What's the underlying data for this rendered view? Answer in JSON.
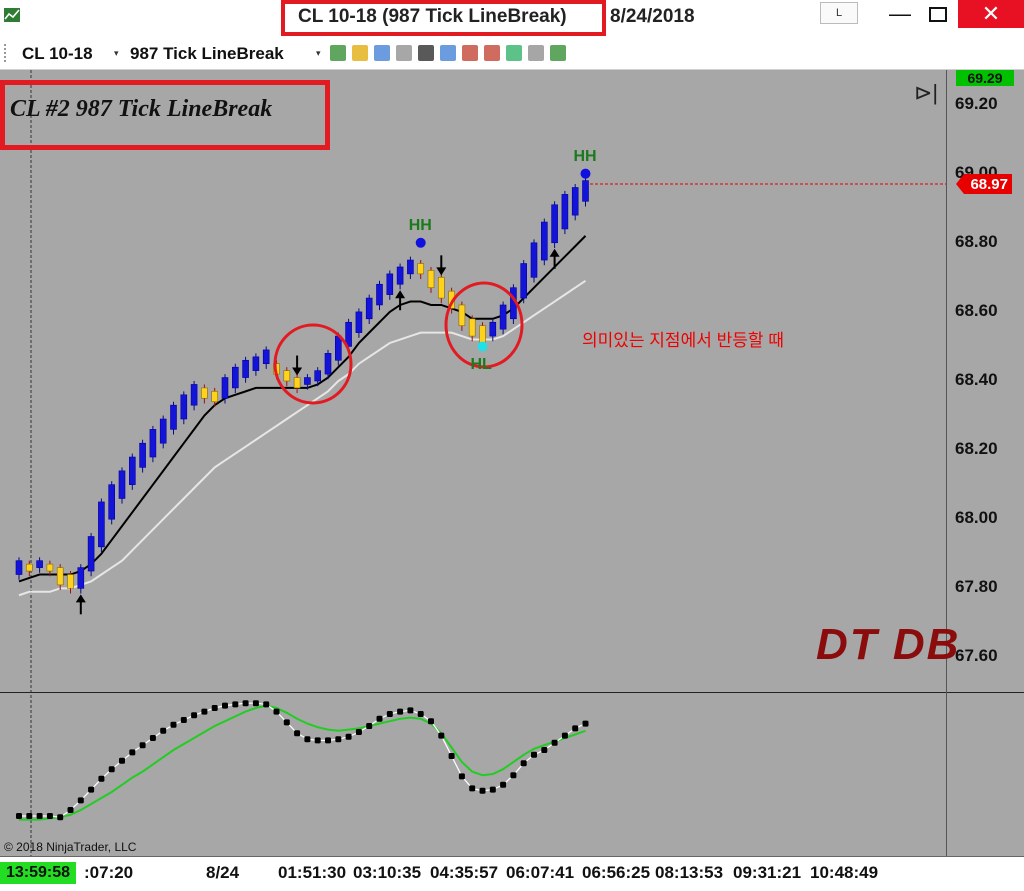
{
  "window": {
    "title": "CL 10-18 (987 Tick LineBreak)",
    "date": "8/24/2018",
    "btn_l": "L",
    "btn_min": "—",
    "btn_close": "✕"
  },
  "toolbar": {
    "instrument": "CL 10-18",
    "series": "987 Tick LineBreak",
    "icons": [
      "bar-style-icon",
      "draw-tool-icon",
      "zoom-in-icon",
      "zoom-out-icon",
      "crosshair-icon",
      "data-box-icon",
      "indicators-icon",
      "strategies-icon",
      "chart-trader-icon",
      "properties-icon",
      "save-icon"
    ]
  },
  "chart": {
    "panel_label": "CL #2  987 Tick LineBreak",
    "watermark": "DT DB",
    "annotation": "의미있는 지점에서 반등할 때",
    "copyright": "© 2018 NinjaTrader, LLC",
    "current_price": "68.97",
    "top_price": "69.29",
    "current_time": "13:59:58",
    "colors": {
      "up": "#1414d8",
      "down": "#ffd21e",
      "ema_fast": "#000000",
      "ema_slow": "#e6e6e6",
      "osc_signal": "#22cc22",
      "annotation": "#e00000",
      "background": "#a7a7a7"
    }
  },
  "chart_data": {
    "type": "line-break",
    "y_ticks": [
      "69.20",
      "69.00",
      "68.80",
      "68.60",
      "68.40",
      "68.20",
      "68.00",
      "67.80",
      "67.60"
    ],
    "x_ticks": [
      ":07:20",
      "8/24",
      "01:51:30",
      "03:10:35",
      "04:35:57",
      "06:07:41",
      "06:56:25",
      "08:13:53",
      "09:31:21",
      "10:48:49"
    ],
    "ylim": [
      67.5,
      69.3
    ],
    "bricks": [
      {
        "dir": "up",
        "o": 67.84,
        "c": 67.88
      },
      {
        "dir": "down",
        "o": 67.87,
        "c": 67.85
      },
      {
        "dir": "up",
        "o": 67.86,
        "c": 67.88
      },
      {
        "dir": "down",
        "o": 67.87,
        "c": 67.85
      },
      {
        "dir": "down",
        "o": 67.86,
        "c": 67.81
      },
      {
        "dir": "down",
        "o": 67.84,
        "c": 67.8
      },
      {
        "dir": "up",
        "o": 67.8,
        "c": 67.86
      },
      {
        "dir": "up",
        "o": 67.85,
        "c": 67.95
      },
      {
        "dir": "up",
        "o": 67.92,
        "c": 68.05
      },
      {
        "dir": "up",
        "o": 68.0,
        "c": 68.1
      },
      {
        "dir": "up",
        "o": 68.06,
        "c": 68.14
      },
      {
        "dir": "up",
        "o": 68.1,
        "c": 68.18
      },
      {
        "dir": "up",
        "o": 68.15,
        "c": 68.22
      },
      {
        "dir": "up",
        "o": 68.18,
        "c": 68.26
      },
      {
        "dir": "up",
        "o": 68.22,
        "c": 68.29
      },
      {
        "dir": "up",
        "o": 68.26,
        "c": 68.33
      },
      {
        "dir": "up",
        "o": 68.29,
        "c": 68.36
      },
      {
        "dir": "up",
        "o": 68.33,
        "c": 68.39
      },
      {
        "dir": "down",
        "o": 68.38,
        "c": 68.35
      },
      {
        "dir": "down",
        "o": 68.37,
        "c": 68.34
      },
      {
        "dir": "up",
        "o": 68.35,
        "c": 68.41
      },
      {
        "dir": "up",
        "o": 68.38,
        "c": 68.44
      },
      {
        "dir": "up",
        "o": 68.41,
        "c": 68.46
      },
      {
        "dir": "up",
        "o": 68.43,
        "c": 68.47
      },
      {
        "dir": "up",
        "o": 68.45,
        "c": 68.49
      },
      {
        "dir": "down",
        "o": 68.45,
        "c": 68.42
      },
      {
        "dir": "down",
        "o": 68.43,
        "c": 68.4
      },
      {
        "dir": "down",
        "o": 68.41,
        "c": 68.38
      },
      {
        "dir": "up",
        "o": 68.39,
        "c": 68.41
      },
      {
        "dir": "up",
        "o": 68.4,
        "c": 68.43
      },
      {
        "dir": "up",
        "o": 68.42,
        "c": 68.48
      },
      {
        "dir": "up",
        "o": 68.46,
        "c": 68.53
      },
      {
        "dir": "up",
        "o": 68.5,
        "c": 68.57
      },
      {
        "dir": "up",
        "o": 68.54,
        "c": 68.6
      },
      {
        "dir": "up",
        "o": 68.58,
        "c": 68.64
      },
      {
        "dir": "up",
        "o": 68.62,
        "c": 68.68
      },
      {
        "dir": "up",
        "o": 68.65,
        "c": 68.71
      },
      {
        "dir": "up",
        "o": 68.68,
        "c": 68.73
      },
      {
        "dir": "up",
        "o": 68.71,
        "c": 68.75
      },
      {
        "dir": "down",
        "o": 68.74,
        "c": 68.71
      },
      {
        "dir": "down",
        "o": 68.72,
        "c": 68.67
      },
      {
        "dir": "down",
        "o": 68.7,
        "c": 68.64
      },
      {
        "dir": "down",
        "o": 68.66,
        "c": 68.61
      },
      {
        "dir": "down",
        "o": 68.62,
        "c": 68.56
      },
      {
        "dir": "down",
        "o": 68.58,
        "c": 68.53
      },
      {
        "dir": "down",
        "o": 68.56,
        "c": 68.51
      },
      {
        "dir": "up",
        "o": 68.53,
        "c": 68.57
      },
      {
        "dir": "up",
        "o": 68.55,
        "c": 68.62
      },
      {
        "dir": "up",
        "o": 68.58,
        "c": 68.67
      },
      {
        "dir": "up",
        "o": 68.64,
        "c": 68.74
      },
      {
        "dir": "up",
        "o": 68.7,
        "c": 68.8
      },
      {
        "dir": "up",
        "o": 68.75,
        "c": 68.86
      },
      {
        "dir": "up",
        "o": 68.8,
        "c": 68.91
      },
      {
        "dir": "up",
        "o": 68.84,
        "c": 68.94
      },
      {
        "dir": "up",
        "o": 68.88,
        "c": 68.96
      },
      {
        "dir": "up",
        "o": 68.92,
        "c": 68.98
      }
    ],
    "ema_fast": [
      67.82,
      67.83,
      67.84,
      67.84,
      67.84,
      67.84,
      67.85,
      67.87,
      67.9,
      67.94,
      67.98,
      68.02,
      68.06,
      68.1,
      68.14,
      68.18,
      68.22,
      68.26,
      68.3,
      68.33,
      68.35,
      68.36,
      68.37,
      68.38,
      68.38,
      68.38,
      68.38,
      68.38,
      68.38,
      68.39,
      68.41,
      68.44,
      68.47,
      68.51,
      68.54,
      68.57,
      68.6,
      68.62,
      68.63,
      68.63,
      68.62,
      68.62,
      68.61,
      68.6,
      68.58,
      68.58,
      68.58,
      68.59,
      68.61,
      68.64,
      68.67,
      68.7,
      68.73,
      68.76,
      68.79,
      68.82
    ],
    "ema_slow": [
      67.78,
      67.79,
      67.79,
      67.79,
      67.8,
      67.8,
      67.81,
      67.82,
      67.84,
      67.86,
      67.88,
      67.91,
      67.94,
      67.97,
      68.0,
      68.03,
      68.06,
      68.09,
      68.12,
      68.15,
      68.17,
      68.19,
      68.21,
      68.23,
      68.25,
      68.27,
      68.29,
      68.31,
      68.33,
      68.35,
      68.37,
      68.4,
      68.42,
      68.45,
      68.47,
      68.49,
      68.51,
      68.52,
      68.53,
      68.54,
      68.54,
      68.54,
      68.54,
      68.53,
      68.52,
      68.52,
      68.52,
      68.53,
      68.55,
      68.57,
      68.59,
      68.61,
      68.63,
      68.65,
      68.67,
      68.69
    ],
    "markers": [
      {
        "label": "HH",
        "index": 39,
        "price": 68.8,
        "kind": "swing-high"
      },
      {
        "label": "HL",
        "index": 45,
        "price": 68.5,
        "kind": "swing-low"
      },
      {
        "label": "HH",
        "index": 55,
        "price": 69.0,
        "kind": "swing-high"
      }
    ],
    "arrows": [
      {
        "index": 6,
        "dir": "up"
      },
      {
        "index": 27,
        "dir": "down"
      },
      {
        "index": 37,
        "dir": "up"
      },
      {
        "index": 41,
        "dir": "down"
      },
      {
        "index": 52,
        "dir": "up"
      }
    ],
    "oscillator": {
      "dots": [
        0.05,
        0.05,
        0.05,
        0.05,
        0.04,
        0.1,
        0.18,
        0.27,
        0.36,
        0.44,
        0.51,
        0.58,
        0.64,
        0.7,
        0.76,
        0.81,
        0.85,
        0.89,
        0.92,
        0.95,
        0.97,
        0.98,
        0.99,
        0.99,
        0.98,
        0.92,
        0.83,
        0.74,
        0.69,
        0.68,
        0.68,
        0.69,
        0.71,
        0.75,
        0.8,
        0.86,
        0.9,
        0.92,
        0.93,
        0.9,
        0.84,
        0.72,
        0.55,
        0.38,
        0.28,
        0.26,
        0.27,
        0.31,
        0.39,
        0.49,
        0.56,
        0.6,
        0.66,
        0.72,
        0.78,
        0.82
      ],
      "signal": [
        0.02,
        0.02,
        0.02,
        0.03,
        0.04,
        0.06,
        0.1,
        0.15,
        0.2,
        0.25,
        0.31,
        0.37,
        0.42,
        0.48,
        0.54,
        0.6,
        0.65,
        0.7,
        0.75,
        0.8,
        0.84,
        0.88,
        0.92,
        0.95,
        0.97,
        0.95,
        0.91,
        0.86,
        0.82,
        0.79,
        0.77,
        0.76,
        0.77,
        0.78,
        0.8,
        0.82,
        0.84,
        0.86,
        0.87,
        0.86,
        0.82,
        0.74,
        0.62,
        0.5,
        0.42,
        0.39,
        0.4,
        0.44,
        0.5,
        0.56,
        0.61,
        0.64,
        0.67,
        0.7,
        0.73,
        0.76
      ]
    }
  }
}
